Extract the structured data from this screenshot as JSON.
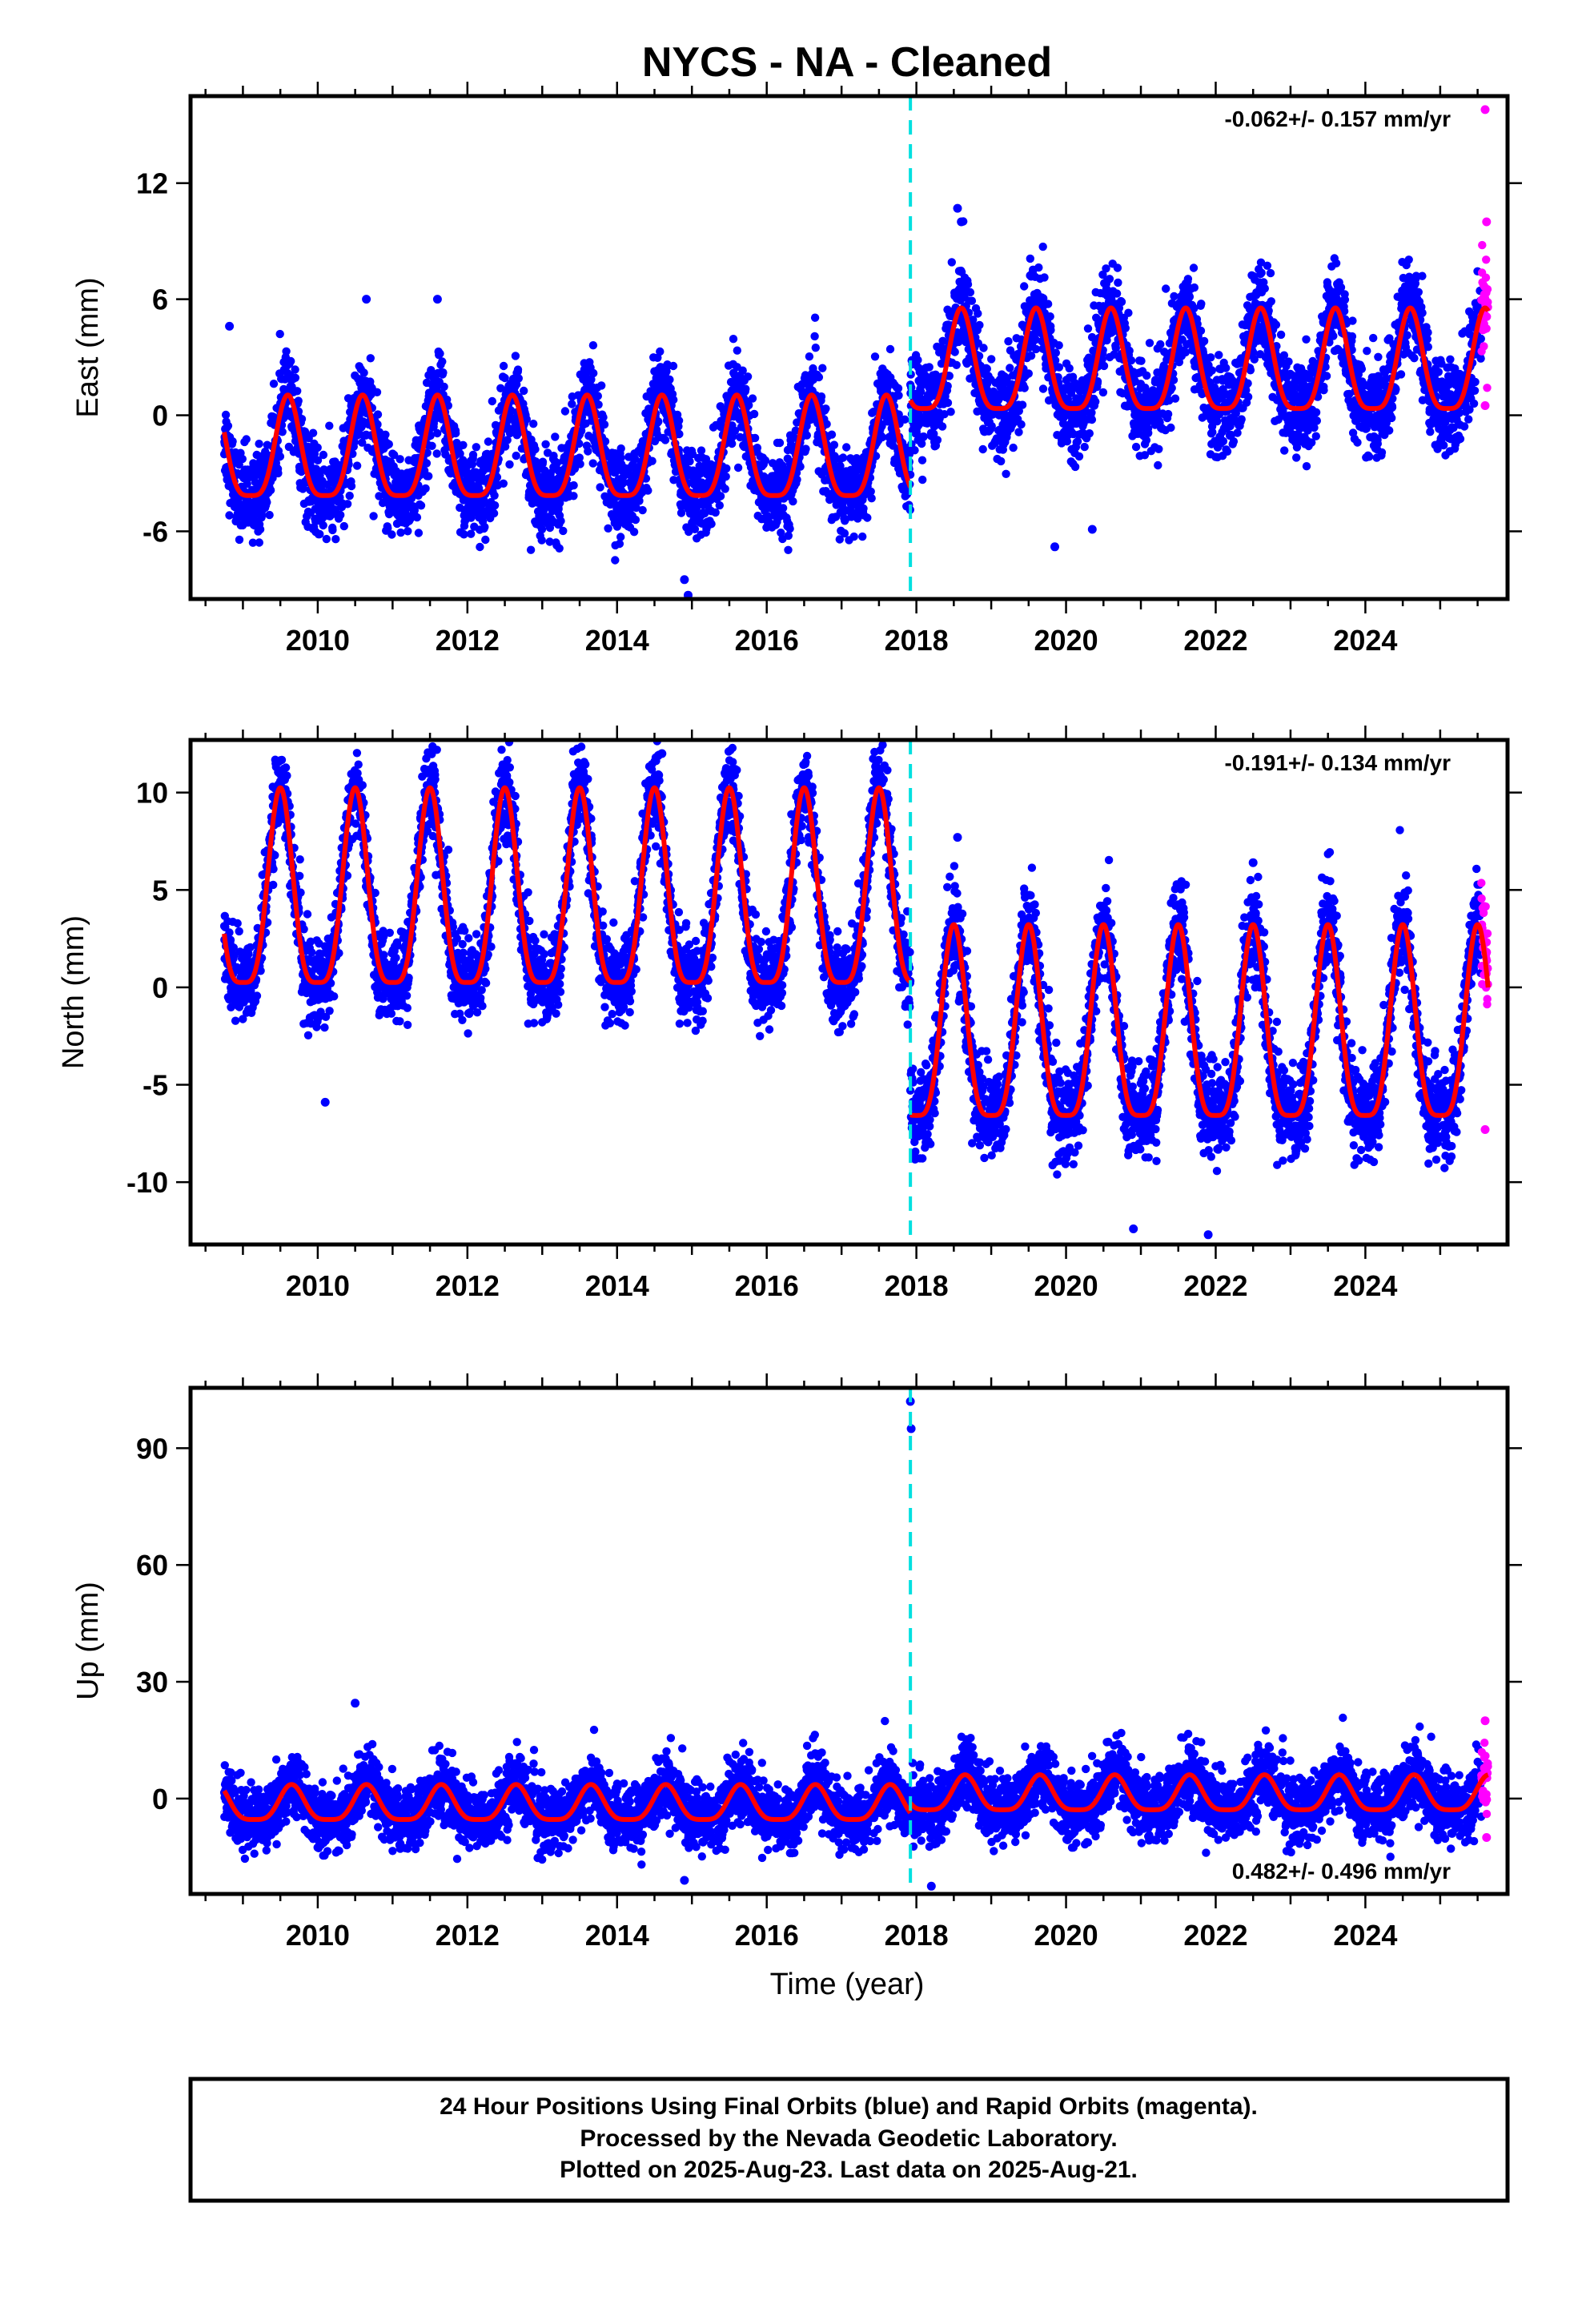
{
  "title": "NYCS  - NA - Cleaned",
  "colors": {
    "final_points": "#0000ff",
    "rapid_points": "#ff00ff",
    "model_fit": "#ff0000",
    "offset_line": "#00e0e0",
    "frame": "#000000"
  },
  "footer": {
    "line1": "24 Hour Positions Using Final Orbits (blue) and Rapid Orbits (magenta).",
    "line2": "Processed by the Nevada Geodetic Laboratory.",
    "line3": "Plotted on 2025-Aug-23. Last data on 2025-Aug-21."
  },
  "chart_data": [
    {
      "type": "scatter",
      "component": "east",
      "ylabel": "East (mm)",
      "xlabel": "",
      "rate_label": "-0.062+/- 0.157 mm/yr",
      "xlim": [
        2008.3,
        2025.9
      ],
      "ylim": [
        -9.5,
        16.5
      ],
      "xticks": [
        2010,
        2012,
        2014,
        2016,
        2018,
        2020,
        2022,
        2024
      ],
      "yticks": [
        -6,
        0,
        6,
        12
      ],
      "offset_epoch": 2017.92,
      "data_start": 2008.75,
      "rapid_start": 2025.55,
      "data_end": 2025.64,
      "series": [
        {
          "name": "Final Orbits",
          "segments": [
            {
              "t0": 2008.75,
              "t1": 2017.92,
              "offset": -2.2,
              "amplitude": 2.6,
              "peak_phase": 0.6,
              "noise": 1.1
            },
            {
              "t0": 2017.92,
              "t1": 2025.64,
              "offset": 2.3,
              "amplitude": 2.6,
              "peak_phase": 0.6,
              "noise": 1.2
            }
          ]
        }
      ],
      "outliers": [
        [
          2008.82,
          4.6
        ],
        [
          2010.65,
          6.0
        ],
        [
          2011.6,
          6.0
        ],
        [
          2014.9,
          -8.5
        ],
        [
          2014.95,
          -9.3
        ],
        [
          2018.55,
          10.7
        ],
        [
          2018.6,
          10.0
        ],
        [
          2019.85,
          -6.8
        ],
        [
          2020.35,
          -5.9
        ],
        [
          2025.6,
          15.8
        ],
        [
          2025.62,
          10.0
        ],
        [
          2025.6,
          0.5
        ]
      ]
    },
    {
      "type": "scatter",
      "component": "north",
      "ylabel": "North (mm)",
      "xlabel": "",
      "rate_label": "-0.191+/- 0.134 mm/yr",
      "xlim": [
        2008.3,
        2025.9
      ],
      "ylim": [
        -13.2,
        12.7
      ],
      "xticks": [
        2010,
        2012,
        2014,
        2016,
        2018,
        2020,
        2022,
        2024
      ],
      "yticks": [
        -10,
        -5,
        0,
        5,
        10
      ],
      "offset_epoch": 2017.92,
      "data_start": 2008.75,
      "rapid_start": 2025.55,
      "data_end": 2025.64,
      "series": [
        {
          "name": "Final Orbits",
          "segments": [
            {
              "t0": 2008.75,
              "t1": 2017.92,
              "offset": 4.0,
              "amplitude": 5.0,
              "peak_phase": 0.5,
              "noise": 1.1
            },
            {
              "t0": 2017.92,
              "t1": 2025.64,
              "offset": -2.9,
              "amplitude": 4.9,
              "peak_phase": 0.5,
              "noise": 1.2
            }
          ]
        }
      ],
      "outliers": [
        [
          2010.1,
          -5.9
        ],
        [
          2014.55,
          11.9
        ],
        [
          2014.6,
          12.0
        ],
        [
          2018.55,
          7.7
        ],
        [
          2020.9,
          -12.4
        ],
        [
          2021.9,
          -12.7
        ],
        [
          2022.5,
          6.4
        ],
        [
          2025.6,
          -7.3
        ],
        [
          2025.62,
          1.8
        ]
      ]
    },
    {
      "type": "scatter",
      "component": "up",
      "ylabel": "Up (mm)",
      "xlabel": "Time (year)",
      "rate_label": "0.482+/- 0.496 mm/yr",
      "xlim": [
        2008.3,
        2025.9
      ],
      "ylim": [
        -24.5,
        105.5
      ],
      "xticks": [
        2010,
        2012,
        2014,
        2016,
        2018,
        2020,
        2022,
        2024
      ],
      "yticks": [
        0,
        30,
        60,
        90
      ],
      "offset_epoch": 2017.92,
      "data_start": 2008.75,
      "rapid_start": 2025.55,
      "data_end": 2025.64,
      "series": [
        {
          "name": "Final Orbits",
          "segments": [
            {
              "t0": 2008.75,
              "t1": 2017.92,
              "offset": -2.0,
              "amplitude": 4.5,
              "peak_phase": 0.65,
              "noise": 4.0
            },
            {
              "t0": 2017.92,
              "t1": 2025.64,
              "offset": 0.5,
              "amplitude": 4.5,
              "peak_phase": 0.65,
              "noise": 4.2
            }
          ]
        }
      ],
      "outliers": [
        [
          2017.92,
          102.0
        ],
        [
          2017.93,
          95.0
        ],
        [
          2010.5,
          24.5
        ],
        [
          2014.9,
          -21.0
        ],
        [
          2018.2,
          -22.5
        ],
        [
          2025.6,
          20.0
        ],
        [
          2025.62,
          -10.0
        ]
      ]
    }
  ]
}
